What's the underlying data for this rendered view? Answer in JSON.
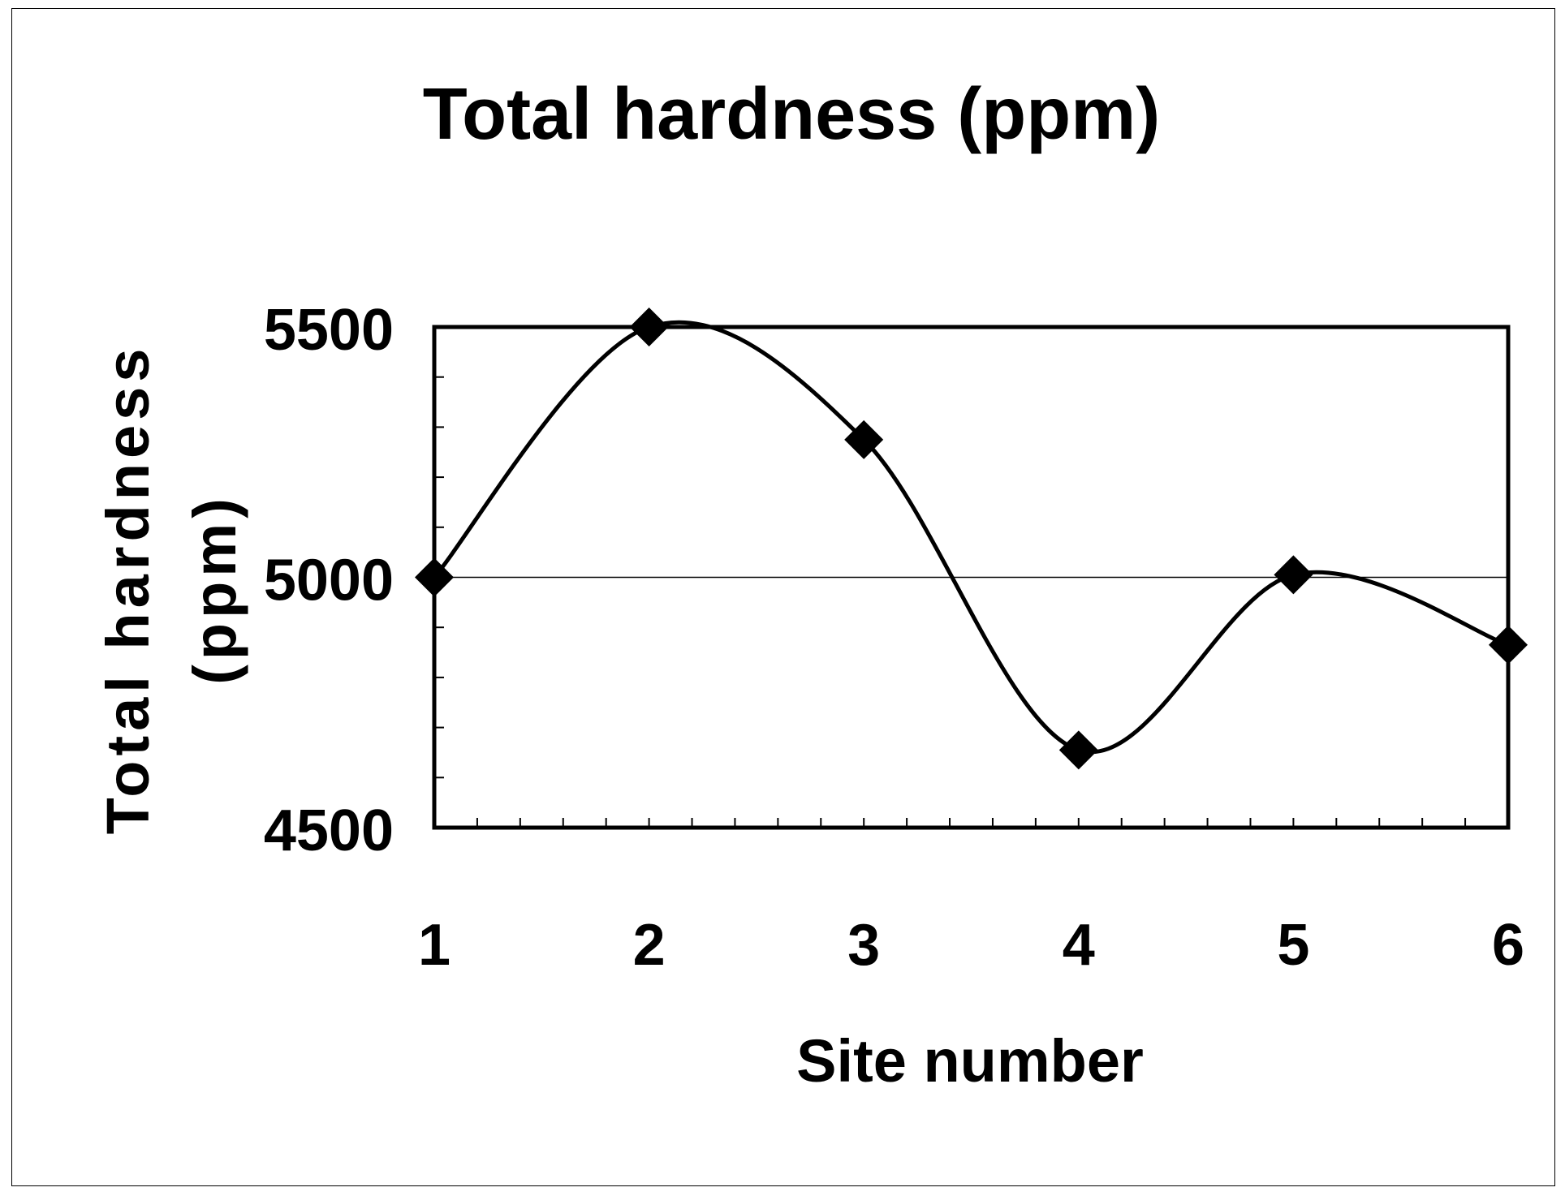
{
  "chart_data": {
    "type": "line",
    "title": "Total hardness (ppm)",
    "xlabel": "Site number",
    "ylabel_line1": "Total hardness",
    "ylabel_line2": "(ppm)",
    "x": [
      1,
      2,
      3,
      4,
      5,
      6
    ],
    "x_tick_labels": [
      "1",
      "2",
      "3",
      "4",
      "5",
      "6"
    ],
    "y_tick_labels": [
      "5500",
      "5000",
      "4500"
    ],
    "series": [
      {
        "values": [
          5000,
          5500,
          5275,
          4655,
          5005,
          4865
        ]
      }
    ],
    "ylim": [
      4500,
      5500
    ],
    "reference_line": 5000,
    "smoothed": true,
    "marker": "diamond",
    "legend": "none",
    "colors": {
      "line": "#000000",
      "marker": "#000000",
      "axis": "#000000"
    }
  }
}
